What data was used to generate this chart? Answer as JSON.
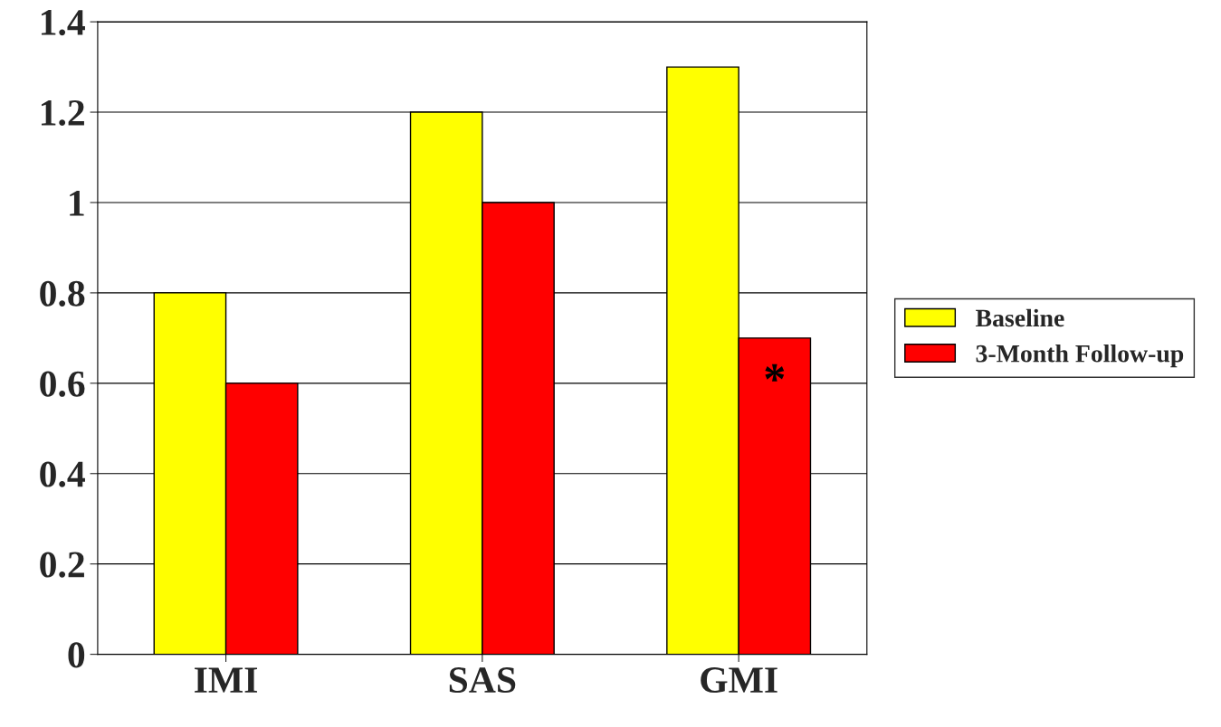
{
  "chart_data": {
    "type": "bar",
    "categories": [
      "IMI",
      "SAS",
      "GMI"
    ],
    "series": [
      {
        "name": "Baseline",
        "color": "#ffff00",
        "values": [
          0.8,
          1.2,
          1.3
        ]
      },
      {
        "name": "3-Month Follow-up",
        "color": "#ff0000",
        "values": [
          0.6,
          1.0,
          0.7
        ]
      }
    ],
    "ylim": [
      0,
      1.4
    ],
    "yticks": [
      0,
      0.2,
      0.4,
      0.6,
      0.8,
      1,
      1.2,
      1.4
    ],
    "grid": "y",
    "legend": "right",
    "annotations": [
      {
        "text": "*",
        "x": "GMI",
        "y": 0.6
      }
    ]
  }
}
